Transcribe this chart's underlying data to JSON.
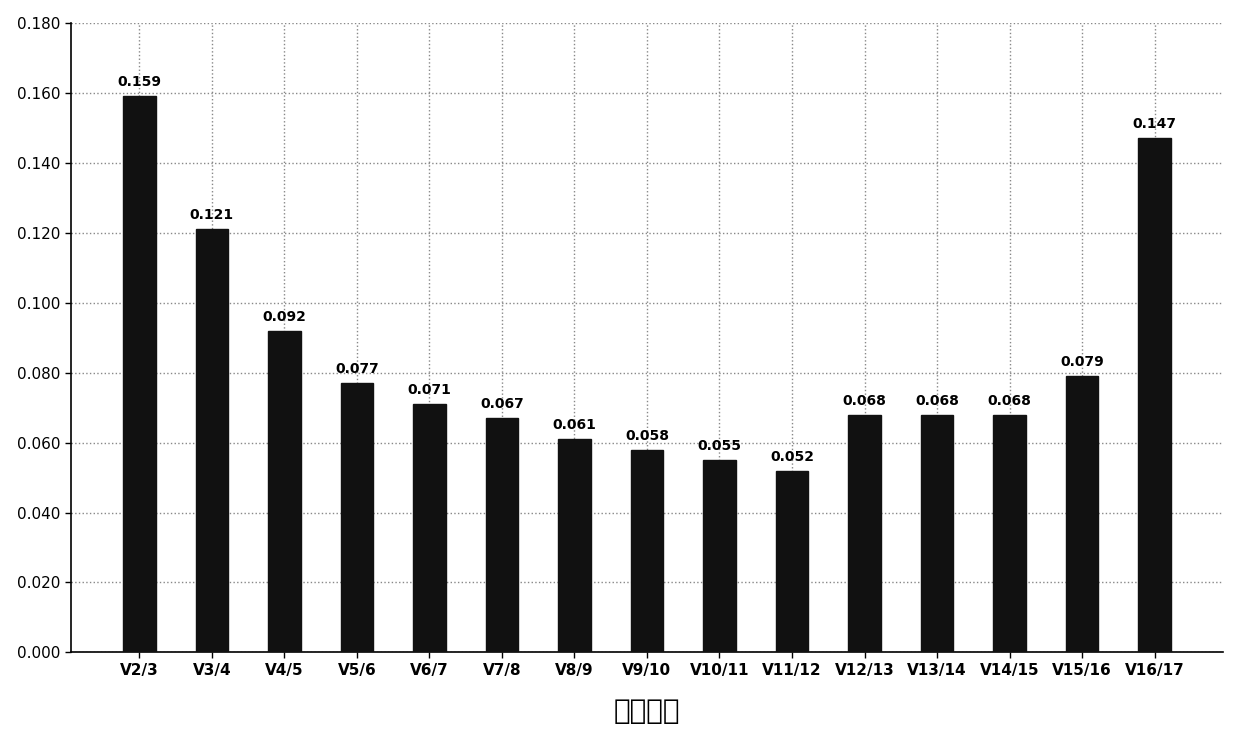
{
  "categories": [
    "V2/3",
    "V3/4",
    "V4/5",
    "V5/6",
    "V6/7",
    "V7/8",
    "V8/9",
    "V9/10",
    "V10/11",
    "V11/12",
    "V12/13",
    "V13/14",
    "V14/15",
    "V15/16",
    "V16/17"
  ],
  "values": [
    0.159,
    0.121,
    0.092,
    0.077,
    0.071,
    0.067,
    0.061,
    0.058,
    0.055,
    0.052,
    0.068,
    0.068,
    0.068,
    0.079,
    0.147
  ],
  "bar_color": "#111111",
  "xlabel": "成对变化",
  "ylabel": "",
  "ylim": [
    0,
    0.18
  ],
  "yticks": [
    0.0,
    0.02,
    0.04,
    0.06,
    0.08,
    0.1,
    0.12,
    0.14,
    0.16,
    0.18
  ],
  "title": "",
  "background_color": "#ffffff",
  "grid_color": "#888888",
  "label_fontsize": 10,
  "xlabel_fontsize": 20,
  "tick_fontsize": 11,
  "bar_width": 0.45
}
